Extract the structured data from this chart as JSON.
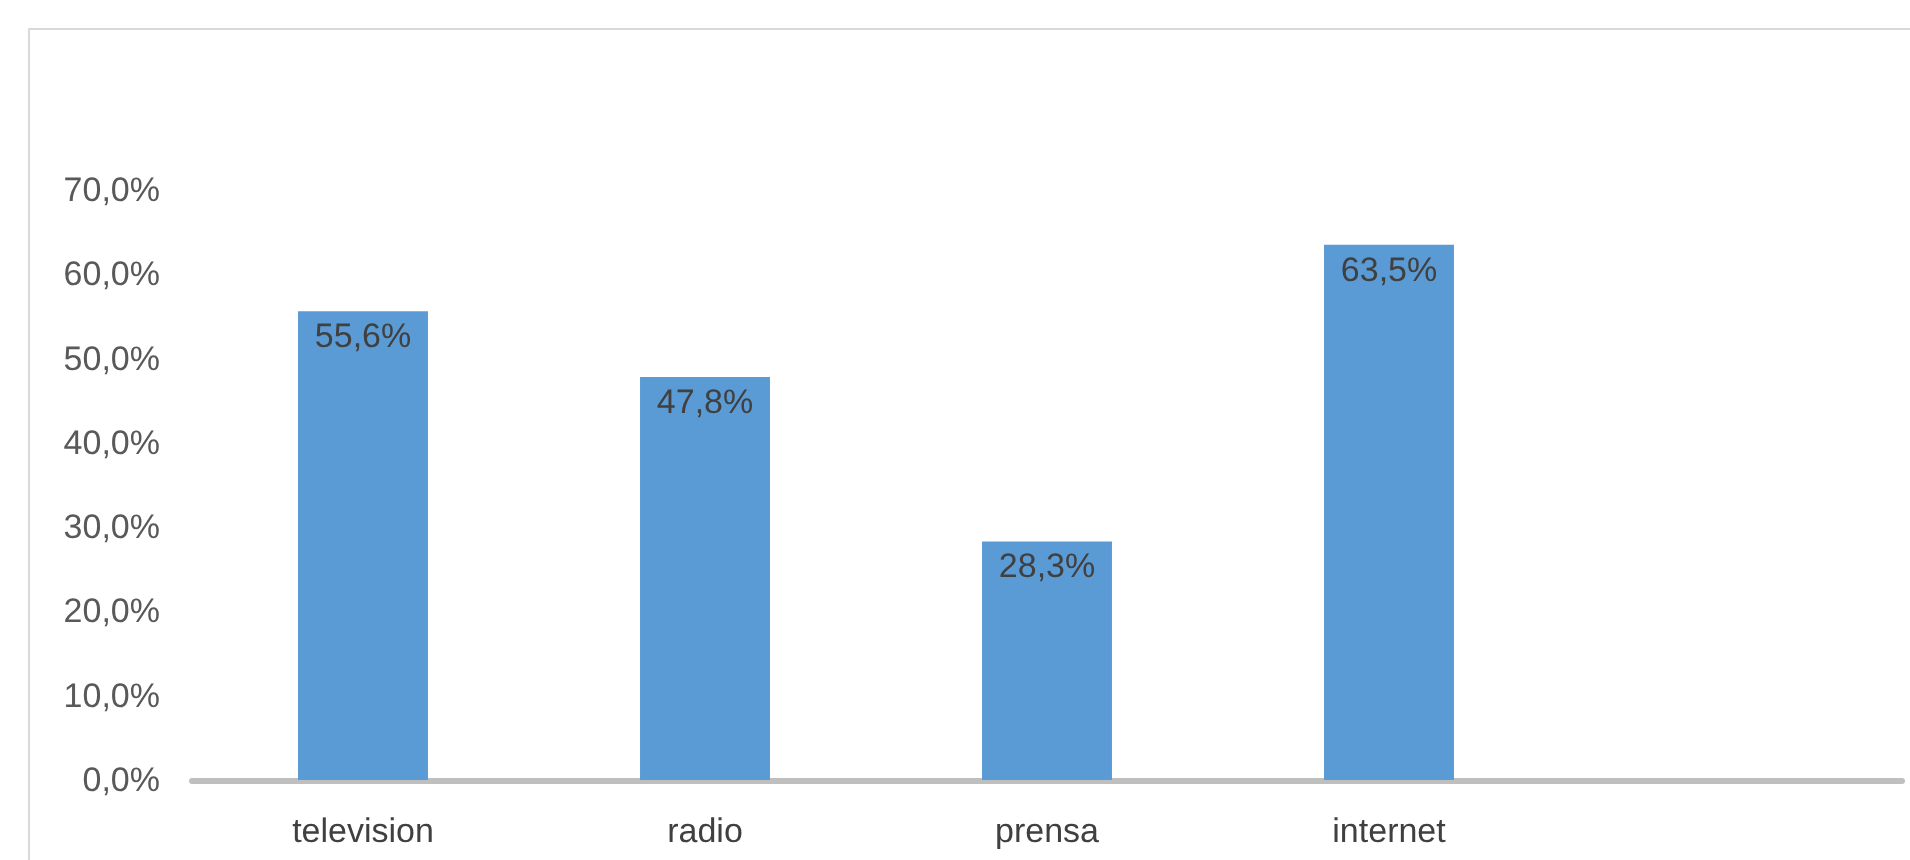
{
  "chart_data": {
    "type": "bar",
    "categories": [
      "television",
      "radio",
      "prensa",
      "internet",
      null
    ],
    "values": [
      55.6,
      47.8,
      28.3,
      63.5,
      null
    ],
    "color": "#5b9bd5",
    "value_labels": [
      "55,6%",
      "47,8%",
      "28,3%",
      "63,5%",
      null
    ],
    "ylim": [
      0,
      70
    ],
    "yticks": [
      {
        "value": 0,
        "label": "0,0%"
      },
      {
        "value": 10,
        "label": "10,0%"
      },
      {
        "value": 20,
        "label": "20,0%"
      },
      {
        "value": 30,
        "label": "30,0%"
      },
      {
        "value": 40,
        "label": "40,0%"
      },
      {
        "value": 50,
        "label": "50,0%"
      },
      {
        "value": 60,
        "label": "60,0%"
      },
      {
        "value": 70,
        "label": "70,0%"
      }
    ],
    "grid": false
  }
}
